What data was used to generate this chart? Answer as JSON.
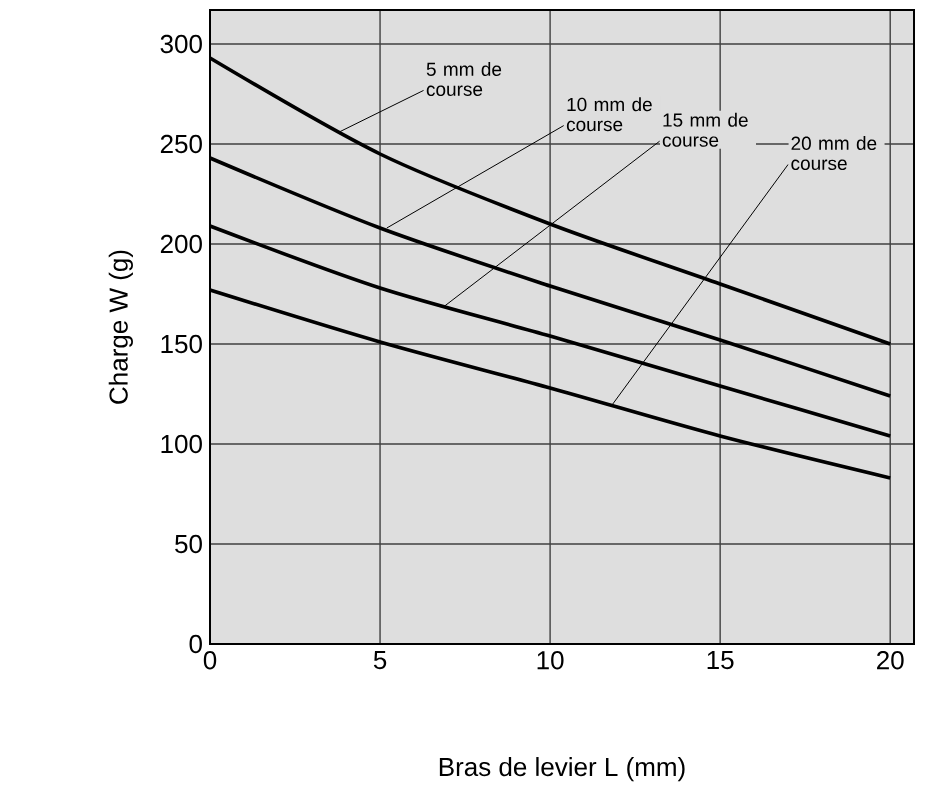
{
  "chart_data": {
    "type": "line",
    "xlabel": "Bras de levier L (mm)",
    "ylabel": "Charge W (g)",
    "x": [
      0,
      5,
      10,
      15,
      20
    ],
    "series": [
      {
        "color": "#000000",
        "values": [
          293,
          245,
          210,
          180,
          150
        ]
      },
      {
        "color": "#000000",
        "values": [
          243,
          208,
          179,
          152,
          124
        ]
      },
      {
        "color": "#000000",
        "values": [
          209,
          178,
          154,
          129,
          104
        ]
      },
      {
        "color": "#000000",
        "values": [
          177,
          151,
          128,
          104,
          83
        ]
      }
    ],
    "annotations": [
      {
        "text": "5 mm de course",
        "x": 3.8,
        "y": 256
      },
      {
        "text": "10 mm de course",
        "x": 5.2,
        "y": 208
      },
      {
        "text": "15 mm de course",
        "x": 6.9,
        "y": 169
      },
      {
        "text": "20 mm de course",
        "x": 11.8,
        "y": 119
      }
    ],
    "xlim": [
      0,
      20.7
    ],
    "ylim": [
      0,
      317
    ],
    "xticks": [
      0,
      5,
      10,
      15,
      20
    ],
    "yticks": [
      0,
      50,
      100,
      150,
      200,
      250,
      300
    ],
    "grid": true,
    "marker": "none",
    "line_style": "solid"
  }
}
